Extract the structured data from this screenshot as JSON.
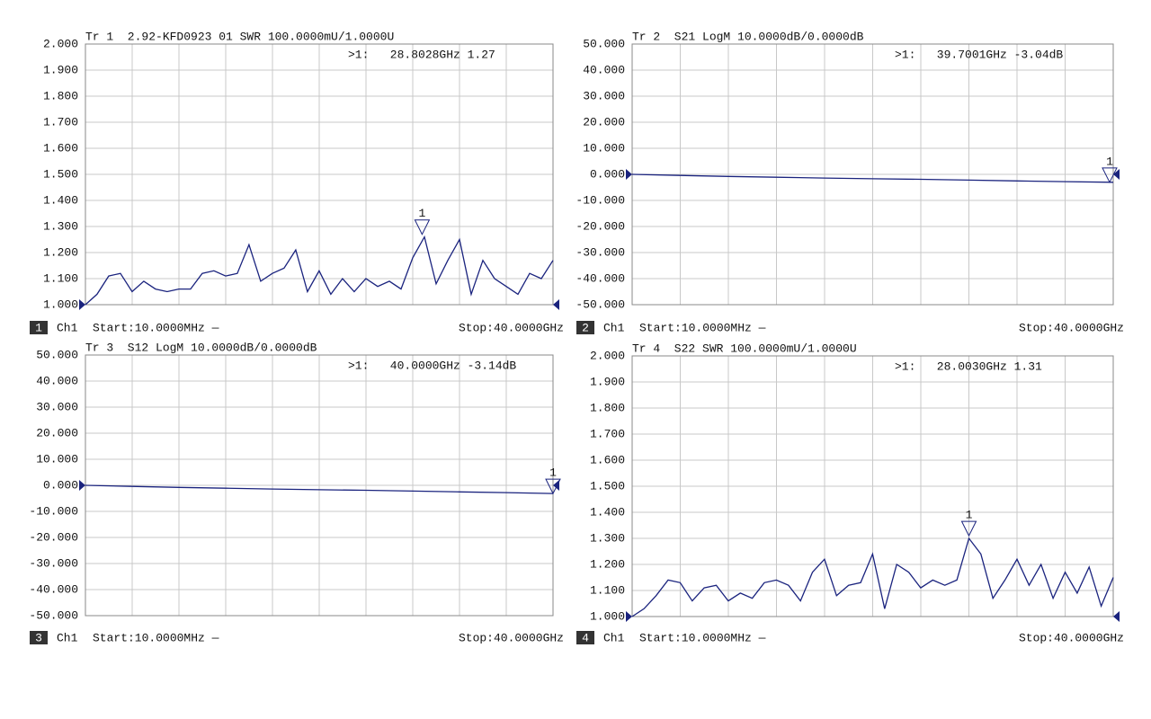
{
  "chart_data": [
    {
      "type": "line",
      "title": "Tr 1  2.92-KFD0923 01 SWR 100.0000mU/1.0000U",
      "channel": "1",
      "ch": "Ch1",
      "start": "Start:10.0000MHz —",
      "stop": "Stop:40.0000GHz",
      "xlim": [
        0.01,
        40
      ],
      "ylim": [
        1,
        2
      ],
      "ref_level": 1,
      "grid": true,
      "color": "#1a237e",
      "yticks": [
        {
          "value": 1,
          "label": "1.000"
        },
        {
          "value": 1.1,
          "label": "1.100"
        },
        {
          "value": 1.2,
          "label": "1.200"
        },
        {
          "value": 1.3,
          "label": "1.300"
        },
        {
          "value": 1.4,
          "label": "1.400"
        },
        {
          "value": 1.5,
          "label": "1.500"
        },
        {
          "value": 1.6,
          "label": "1.600"
        },
        {
          "value": 1.7,
          "label": "1.700"
        },
        {
          "value": 1.8,
          "label": "1.800"
        },
        {
          "value": 1.9,
          "label": "1.900"
        },
        {
          "value": 2,
          "label": "2.000"
        }
      ],
      "x": [
        0.01,
        1,
        2,
        3,
        4,
        5,
        6,
        7,
        8,
        9,
        10,
        11,
        12,
        13,
        14,
        15,
        16,
        17,
        18,
        19,
        20,
        21,
        22,
        23,
        24,
        25,
        26,
        27,
        28,
        29,
        30,
        31,
        32,
        33,
        34,
        35,
        36,
        37,
        38,
        39,
        40
      ],
      "values": [
        1.0,
        1.04,
        1.11,
        1.12,
        1.05,
        1.09,
        1.06,
        1.05,
        1.06,
        1.06,
        1.12,
        1.13,
        1.11,
        1.12,
        1.23,
        1.09,
        1.12,
        1.14,
        1.21,
        1.05,
        1.13,
        1.04,
        1.1,
        1.05,
        1.1,
        1.07,
        1.09,
        1.06,
        1.18,
        1.26,
        1.08,
        1.17,
        1.25,
        1.04,
        1.17,
        1.1,
        1.07,
        1.04,
        1.12,
        1.1,
        1.17
      ],
      "marker": {
        "label": "1",
        "x": 28.8028,
        "y": 1.27
      },
      "marker_readout": ">1:   28.8028GHz 1.27"
    },
    {
      "type": "line",
      "title": "Tr 2  S21 LogM 10.0000dB/0.0000dB",
      "channel": "2",
      "ch": "Ch1",
      "start": "Start:10.0000MHz —",
      "stop": "Stop:40.0000GHz",
      "xlim": [
        0.01,
        40
      ],
      "ylim": [
        -50,
        50
      ],
      "ref_level": 0,
      "grid": true,
      "color": "#1a237e",
      "yticks": [
        {
          "value": -50,
          "label": "-50.000"
        },
        {
          "value": -40,
          "label": "-40.000"
        },
        {
          "value": -30,
          "label": "-30.000"
        },
        {
          "value": -20,
          "label": "-20.000"
        },
        {
          "value": -10,
          "label": "-10.000"
        },
        {
          "value": 0,
          "label": "0.000"
        },
        {
          "value": 10,
          "label": "10.000"
        },
        {
          "value": 20,
          "label": "20.000"
        },
        {
          "value": 30,
          "label": "30.000"
        },
        {
          "value": 40,
          "label": "40.000"
        },
        {
          "value": 50,
          "label": "50.000"
        }
      ],
      "x": [
        0.01,
        4,
        8,
        12,
        16,
        20,
        24,
        28,
        32,
        36,
        40
      ],
      "values": [
        0,
        -0.4,
        -0.8,
        -1.1,
        -1.4,
        -1.7,
        -1.9,
        -2.2,
        -2.5,
        -2.8,
        -3.05
      ],
      "marker": {
        "label": "1",
        "x": 39.7001,
        "y": -3.04
      },
      "marker_readout": ">1:   39.7001GHz -3.04dB"
    },
    {
      "type": "line",
      "title": "Tr 3  S12 LogM 10.0000dB/0.0000dB",
      "channel": "3",
      "ch": "Ch1",
      "start": "Start:10.0000MHz —",
      "stop": "Stop:40.0000GHz",
      "xlim": [
        0.01,
        40
      ],
      "ylim": [
        -50,
        50
      ],
      "ref_level": 0,
      "grid": true,
      "color": "#1a237e",
      "yticks": [
        {
          "value": -50,
          "label": "-50.000"
        },
        {
          "value": -40,
          "label": "-40.000"
        },
        {
          "value": -30,
          "label": "-30.000"
        },
        {
          "value": -20,
          "label": "-20.000"
        },
        {
          "value": -10,
          "label": "-10.000"
        },
        {
          "value": 0,
          "label": "0.000"
        },
        {
          "value": 10,
          "label": "10.000"
        },
        {
          "value": 20,
          "label": "20.000"
        },
        {
          "value": 30,
          "label": "30.000"
        },
        {
          "value": 40,
          "label": "40.000"
        },
        {
          "value": 50,
          "label": "50.000"
        }
      ],
      "x": [
        0.01,
        4,
        8,
        12,
        16,
        20,
        24,
        28,
        32,
        36,
        40
      ],
      "values": [
        0,
        -0.4,
        -0.8,
        -1.1,
        -1.4,
        -1.7,
        -1.9,
        -2.2,
        -2.5,
        -2.8,
        -3.14
      ],
      "marker": {
        "label": "1",
        "x": 40.0,
        "y": -3.14
      },
      "marker_readout": ">1:   40.0000GHz -3.14dB"
    },
    {
      "type": "line",
      "title": "Tr 4  S22 SWR 100.0000mU/1.0000U",
      "channel": "4",
      "ch": "Ch1",
      "start": "Start:10.0000MHz —",
      "stop": "Stop:40.0000GHz",
      "xlim": [
        0.01,
        40
      ],
      "ylim": [
        1,
        2
      ],
      "ref_level": 1,
      "grid": true,
      "color": "#1a237e",
      "yticks": [
        {
          "value": 1,
          "label": "1.000"
        },
        {
          "value": 1.1,
          "label": "1.100"
        },
        {
          "value": 1.2,
          "label": "1.200"
        },
        {
          "value": 1.3,
          "label": "1.300"
        },
        {
          "value": 1.4,
          "label": "1.400"
        },
        {
          "value": 1.5,
          "label": "1.500"
        },
        {
          "value": 1.6,
          "label": "1.600"
        },
        {
          "value": 1.7,
          "label": "1.700"
        },
        {
          "value": 1.8,
          "label": "1.800"
        },
        {
          "value": 1.9,
          "label": "1.900"
        },
        {
          "value": 2,
          "label": "2.000"
        }
      ],
      "x": [
        0.01,
        1,
        2,
        3,
        4,
        5,
        6,
        7,
        8,
        9,
        10,
        11,
        12,
        13,
        14,
        15,
        16,
        17,
        18,
        19,
        20,
        21,
        22,
        23,
        24,
        25,
        26,
        27,
        28,
        29,
        30,
        31,
        32,
        33,
        34,
        35,
        36,
        37,
        38,
        39,
        40
      ],
      "values": [
        1.0,
        1.03,
        1.08,
        1.14,
        1.13,
        1.06,
        1.11,
        1.12,
        1.06,
        1.09,
        1.07,
        1.13,
        1.14,
        1.12,
        1.06,
        1.17,
        1.22,
        1.08,
        1.12,
        1.13,
        1.24,
        1.03,
        1.2,
        1.17,
        1.11,
        1.14,
        1.12,
        1.14,
        1.3,
        1.24,
        1.07,
        1.14,
        1.22,
        1.12,
        1.2,
        1.07,
        1.17,
        1.09,
        1.19,
        1.04,
        1.15
      ],
      "marker": {
        "label": "1",
        "x": 28.003,
        "y": 1.31
      },
      "marker_readout": ">1:   28.0030GHz 1.31"
    }
  ]
}
